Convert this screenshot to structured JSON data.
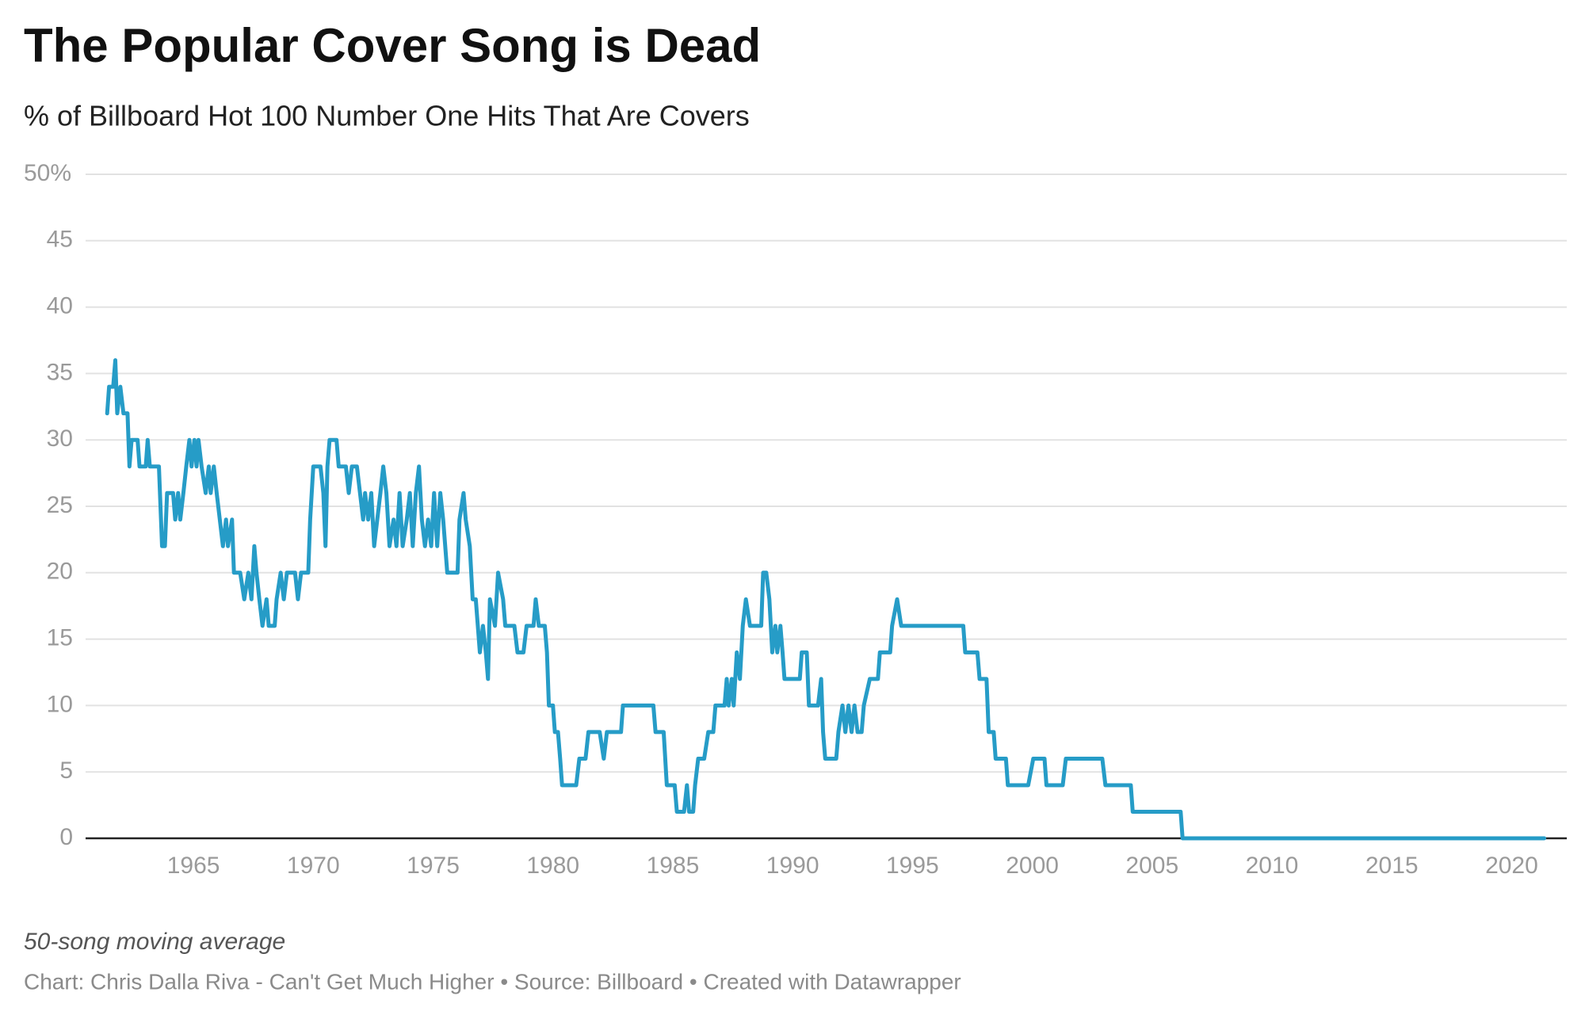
{
  "chart_data": {
    "type": "line",
    "title": "The Popular Cover Song is Dead",
    "subtitle": "% of Billboard Hot 100 Number One Hits That Are Covers",
    "note": "50-song moving average",
    "source": "Chart: Chris Dalla Riva - Can't Get Much Higher • Source: Billboard • Created with Datawrapper",
    "color": "#269cc7",
    "grid": true,
    "xlim": [
      1960.5,
      2022.3
    ],
    "xticks": [
      1965,
      1970,
      1975,
      1980,
      1985,
      1990,
      1995,
      2000,
      2005,
      2010,
      2015,
      2020
    ],
    "ylim": [
      0,
      50
    ],
    "yticks": [
      0,
      5,
      10,
      15,
      20,
      25,
      30,
      35,
      40,
      45,
      {
        "value": 50,
        "label": "50%"
      }
    ],
    "x": [
      1961.4,
      1961.48,
      1961.65,
      1961.74,
      1961.82,
      1961.95,
      1962.08,
      1962.25,
      1962.33,
      1962.42,
      1962.67,
      1962.75,
      1963.01,
      1963.09,
      1963.18,
      1963.56,
      1963.69,
      1963.81,
      1963.9,
      1964.15,
      1964.24,
      1964.36,
      1964.45,
      1964.58,
      1964.7,
      1964.83,
      1964.92,
      1965.04,
      1965.13,
      1965.21,
      1965.34,
      1965.51,
      1965.64,
      1965.72,
      1965.85,
      1965.97,
      1966.1,
      1966.23,
      1966.36,
      1966.44,
      1966.61,
      1966.69,
      1966.95,
      1967.12,
      1967.29,
      1967.42,
      1967.54,
      1967.63,
      1967.75,
      1967.88,
      1968.05,
      1968.14,
      1968.39,
      1968.47,
      1968.64,
      1968.77,
      1968.9,
      1969.24,
      1969.36,
      1969.49,
      1969.79,
      1969.87,
      1970.0,
      1970.3,
      1970.42,
      1970.51,
      1970.59,
      1970.68,
      1970.97,
      1971.06,
      1971.36,
      1971.48,
      1971.61,
      1971.82,
      1971.95,
      1972.08,
      1972.16,
      1972.29,
      1972.42,
      1972.54,
      1972.67,
      1972.8,
      1972.92,
      1973.05,
      1973.18,
      1973.35,
      1973.47,
      1973.6,
      1973.73,
      1973.9,
      1974.03,
      1974.15,
      1974.28,
      1974.41,
      1974.53,
      1974.66,
      1974.79,
      1974.92,
      1975.04,
      1975.17,
      1975.3,
      1975.42,
      1975.59,
      1976.02,
      1976.1,
      1976.27,
      1976.36,
      1976.53,
      1976.65,
      1976.78,
      1976.95,
      1977.08,
      1977.2,
      1977.29,
      1977.37,
      1977.58,
      1977.71,
      1977.92,
      1978.01,
      1978.39,
      1978.52,
      1978.77,
      1978.9,
      1979.19,
      1979.28,
      1979.41,
      1979.66,
      1979.75,
      1979.83,
      1980.0,
      1980.08,
      1980.21,
      1980.3,
      1980.38,
      1980.97,
      1981.1,
      1981.36,
      1981.48,
      1981.95,
      1982.12,
      1982.25,
      1982.84,
      1982.92,
      1984.19,
      1984.28,
      1984.62,
      1984.75,
      1985.08,
      1985.17,
      1985.47,
      1985.59,
      1985.68,
      1985.85,
      1985.93,
      1986.06,
      1986.31,
      1986.48,
      1986.69,
      1986.78,
      1987.16,
      1987.25,
      1987.33,
      1987.46,
      1987.54,
      1987.67,
      1987.8,
      1987.92,
      1988.05,
      1988.22,
      1988.69,
      1988.77,
      1988.9,
      1989.03,
      1989.15,
      1989.28,
      1989.36,
      1989.49,
      1989.58,
      1989.66,
      1990.3,
      1990.38,
      1990.59,
      1990.68,
      1991.06,
      1991.19,
      1991.27,
      1991.36,
      1991.82,
      1991.91,
      1992.08,
      1992.2,
      1992.33,
      1992.46,
      1992.58,
      1992.71,
      1992.88,
      1992.97,
      1993.22,
      1993.56,
      1993.64,
      1994.07,
      1994.15,
      1994.36,
      1994.53,
      1997.12,
      1997.2,
      1997.71,
      1997.8,
      1998.09,
      1998.18,
      1998.39,
      1998.47,
      1998.9,
      1998.98,
      1999.83,
      2000.04,
      2000.51,
      2000.59,
      2001.27,
      2001.4,
      2002.92,
      2003.05,
      2004.11,
      2004.19,
      2006.19,
      2006.27,
      2021.36
    ],
    "values": [
      32,
      34,
      34,
      36,
      32,
      34,
      32,
      32,
      28,
      30,
      30,
      28,
      28,
      30,
      28,
      28,
      22,
      22,
      26,
      26,
      24,
      26,
      24,
      26,
      28,
      30,
      28,
      30,
      28,
      30,
      28,
      26,
      28,
      26,
      28,
      26,
      24,
      22,
      24,
      22,
      24,
      20,
      20,
      18,
      20,
      18,
      22,
      20,
      18,
      16,
      18,
      16,
      16,
      18,
      20,
      18,
      20,
      20,
      18,
      20,
      20,
      24,
      28,
      28,
      26,
      22,
      28,
      30,
      30,
      28,
      28,
      26,
      28,
      28,
      26,
      24,
      26,
      24,
      26,
      22,
      24,
      26,
      28,
      26,
      22,
      24,
      22,
      26,
      22,
      24,
      26,
      22,
      26,
      28,
      24,
      22,
      24,
      22,
      26,
      22,
      26,
      24,
      20,
      20,
      24,
      26,
      24,
      22,
      18,
      18,
      14,
      16,
      14,
      12,
      18,
      16,
      20,
      18,
      16,
      16,
      14,
      14,
      16,
      16,
      18,
      16,
      16,
      14,
      10,
      10,
      8,
      8,
      6,
      4,
      4,
      6,
      6,
      8,
      8,
      6,
      8,
      8,
      10,
      10,
      8,
      8,
      4,
      4,
      2,
      2,
      4,
      2,
      2,
      4,
      6,
      6,
      8,
      8,
      10,
      10,
      12,
      10,
      12,
      10,
      14,
      12,
      16,
      18,
      16,
      16,
      20,
      20,
      18,
      14,
      16,
      14,
      16,
      14,
      12,
      12,
      14,
      14,
      10,
      10,
      12,
      8,
      6,
      6,
      8,
      10,
      8,
      10,
      8,
      10,
      8,
      8,
      10,
      12,
      12,
      14,
      14,
      16,
      18,
      16,
      16,
      14,
      14,
      12,
      12,
      8,
      8,
      6,
      6,
      4,
      4,
      6,
      6,
      4,
      4,
      6,
      6,
      4,
      4,
      2,
      2,
      0,
      0
    ]
  }
}
